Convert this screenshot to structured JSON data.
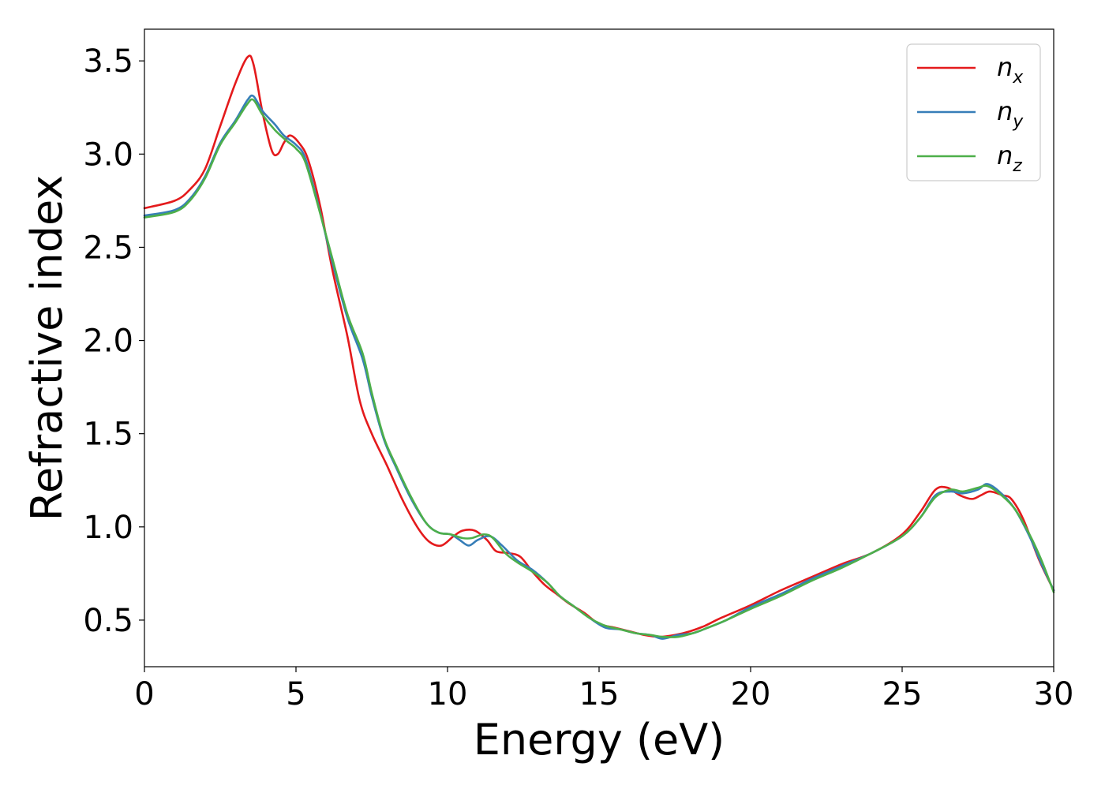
{
  "chart_data": {
    "type": "line",
    "xlabel": "Energy (eV)",
    "ylabel": "Refractive index",
    "xlim": [
      0,
      30
    ],
    "ylim": [
      0.25,
      3.67
    ],
    "xticks": [
      0,
      5,
      10,
      15,
      20,
      25,
      30
    ],
    "xtick_labels": [
      "0",
      "5",
      "10",
      "15",
      "20",
      "25",
      "30"
    ],
    "yticks": [
      0.5,
      1.0,
      1.5,
      2.0,
      2.5,
      3.0,
      3.5
    ],
    "ytick_labels": [
      "0.5",
      "1.0",
      "1.5",
      "2.0",
      "2.5",
      "3.0",
      "3.5"
    ],
    "grid": false,
    "legend_position": "top-right",
    "series": [
      {
        "name": "n_x",
        "label_base": "n",
        "label_sub": "x",
        "color": "#e41a1c",
        "points": [
          [
            0,
            2.71
          ],
          [
            1,
            2.75
          ],
          [
            1.5,
            2.81
          ],
          [
            2,
            2.92
          ],
          [
            2.5,
            3.15
          ],
          [
            3,
            3.38
          ],
          [
            3.4,
            3.52
          ],
          [
            3.6,
            3.48
          ],
          [
            3.9,
            3.22
          ],
          [
            4.2,
            3.02
          ],
          [
            4.4,
            3.0
          ],
          [
            4.6,
            3.06
          ],
          [
            4.8,
            3.1
          ],
          [
            5.1,
            3.06
          ],
          [
            5.4,
            2.97
          ],
          [
            5.8,
            2.72
          ],
          [
            6.2,
            2.38
          ],
          [
            6.7,
            2.02
          ],
          [
            7.1,
            1.68
          ],
          [
            7.5,
            1.5
          ],
          [
            8,
            1.33
          ],
          [
            8.5,
            1.15
          ],
          [
            9,
            1.0
          ],
          [
            9.4,
            0.92
          ],
          [
            9.8,
            0.9
          ],
          [
            10.2,
            0.95
          ],
          [
            10.5,
            0.98
          ],
          [
            10.9,
            0.98
          ],
          [
            11.3,
            0.93
          ],
          [
            11.6,
            0.87
          ],
          [
            12,
            0.86
          ],
          [
            12.4,
            0.84
          ],
          [
            12.8,
            0.76
          ],
          [
            13.2,
            0.69
          ],
          [
            13.6,
            0.64
          ],
          [
            14,
            0.59
          ],
          [
            14.5,
            0.54
          ],
          [
            15,
            0.48
          ],
          [
            15.5,
            0.46
          ],
          [
            16,
            0.44
          ],
          [
            16.5,
            0.42
          ],
          [
            17,
            0.41
          ],
          [
            17.5,
            0.42
          ],
          [
            18,
            0.44
          ],
          [
            18.5,
            0.47
          ],
          [
            19,
            0.51
          ],
          [
            20,
            0.58
          ],
          [
            21,
            0.66
          ],
          [
            22,
            0.73
          ],
          [
            23,
            0.8
          ],
          [
            24,
            0.86
          ],
          [
            25,
            0.96
          ],
          [
            25.6,
            1.08
          ],
          [
            26.1,
            1.2
          ],
          [
            26.5,
            1.21
          ],
          [
            26.9,
            1.17
          ],
          [
            27.3,
            1.15
          ],
          [
            27.6,
            1.17
          ],
          [
            27.9,
            1.19
          ],
          [
            28.3,
            1.17
          ],
          [
            28.6,
            1.15
          ],
          [
            29,
            1.04
          ],
          [
            29.5,
            0.83
          ],
          [
            30,
            0.66
          ]
        ]
      },
      {
        "name": "n_y",
        "label_base": "n",
        "label_sub": "y",
        "color": "#377eb8",
        "points": [
          [
            0,
            2.67
          ],
          [
            1,
            2.7
          ],
          [
            1.5,
            2.76
          ],
          [
            2,
            2.88
          ],
          [
            2.5,
            3.06
          ],
          [
            3,
            3.18
          ],
          [
            3.4,
            3.29
          ],
          [
            3.6,
            3.31
          ],
          [
            3.9,
            3.23
          ],
          [
            4.3,
            3.16
          ],
          [
            4.6,
            3.1
          ],
          [
            5,
            3.05
          ],
          [
            5.3,
            2.98
          ],
          [
            5.7,
            2.75
          ],
          [
            6.2,
            2.42
          ],
          [
            6.7,
            2.12
          ],
          [
            7.2,
            1.9
          ],
          [
            7.5,
            1.7
          ],
          [
            7.9,
            1.47
          ],
          [
            8.3,
            1.32
          ],
          [
            8.8,
            1.15
          ],
          [
            9.3,
            1.02
          ],
          [
            9.7,
            0.97
          ],
          [
            10.1,
            0.96
          ],
          [
            10.4,
            0.93
          ],
          [
            10.7,
            0.9
          ],
          [
            11,
            0.93
          ],
          [
            11.4,
            0.95
          ],
          [
            11.8,
            0.9
          ],
          [
            12.3,
            0.82
          ],
          [
            12.8,
            0.77
          ],
          [
            13.3,
            0.7
          ],
          [
            13.7,
            0.63
          ],
          [
            14.2,
            0.57
          ],
          [
            14.7,
            0.51
          ],
          [
            15.2,
            0.46
          ],
          [
            15.7,
            0.45
          ],
          [
            16.2,
            0.43
          ],
          [
            16.7,
            0.42
          ],
          [
            17.1,
            0.4
          ],
          [
            17.6,
            0.42
          ],
          [
            18.1,
            0.43
          ],
          [
            18.6,
            0.46
          ],
          [
            19.2,
            0.5
          ],
          [
            20,
            0.57
          ],
          [
            21,
            0.64
          ],
          [
            22,
            0.72
          ],
          [
            23,
            0.79
          ],
          [
            24,
            0.86
          ],
          [
            25,
            0.95
          ],
          [
            25.6,
            1.05
          ],
          [
            26.1,
            1.17
          ],
          [
            26.6,
            1.19
          ],
          [
            27,
            1.18
          ],
          [
            27.5,
            1.2
          ],
          [
            27.8,
            1.23
          ],
          [
            28.2,
            1.19
          ],
          [
            28.7,
            1.1
          ],
          [
            29.2,
            0.95
          ],
          [
            29.6,
            0.8
          ],
          [
            30,
            0.66
          ]
        ]
      },
      {
        "name": "n_z",
        "label_base": "n",
        "label_sub": "z",
        "color": "#4daf4a",
        "points": [
          [
            0,
            2.66
          ],
          [
            1,
            2.69
          ],
          [
            1.5,
            2.75
          ],
          [
            2,
            2.87
          ],
          [
            2.5,
            3.05
          ],
          [
            3,
            3.17
          ],
          [
            3.4,
            3.27
          ],
          [
            3.6,
            3.29
          ],
          [
            3.9,
            3.21
          ],
          [
            4.3,
            3.13
          ],
          [
            4.7,
            3.07
          ],
          [
            5,
            3.03
          ],
          [
            5.3,
            2.96
          ],
          [
            5.7,
            2.74
          ],
          [
            6.2,
            2.44
          ],
          [
            6.7,
            2.14
          ],
          [
            7.2,
            1.93
          ],
          [
            7.5,
            1.72
          ],
          [
            7.9,
            1.48
          ],
          [
            8.3,
            1.33
          ],
          [
            8.8,
            1.16
          ],
          [
            9.3,
            1.02
          ],
          [
            9.7,
            0.97
          ],
          [
            10.1,
            0.96
          ],
          [
            10.5,
            0.94
          ],
          [
            10.8,
            0.94
          ],
          [
            11.2,
            0.96
          ],
          [
            11.5,
            0.94
          ],
          [
            11.9,
            0.86
          ],
          [
            12.3,
            0.81
          ],
          [
            12.8,
            0.76
          ],
          [
            13.3,
            0.7
          ],
          [
            13.7,
            0.63
          ],
          [
            14.2,
            0.57
          ],
          [
            14.7,
            0.51
          ],
          [
            15.2,
            0.47
          ],
          [
            15.7,
            0.45
          ],
          [
            16.2,
            0.43
          ],
          [
            16.7,
            0.42
          ],
          [
            17.1,
            0.41
          ],
          [
            17.6,
            0.41
          ],
          [
            18.1,
            0.43
          ],
          [
            18.6,
            0.46
          ],
          [
            19.2,
            0.5
          ],
          [
            20,
            0.56
          ],
          [
            21,
            0.63
          ],
          [
            22,
            0.71
          ],
          [
            23,
            0.78
          ],
          [
            24,
            0.86
          ],
          [
            25,
            0.95
          ],
          [
            25.6,
            1.05
          ],
          [
            26.1,
            1.16
          ],
          [
            26.6,
            1.2
          ],
          [
            27,
            1.19
          ],
          [
            27.5,
            1.21
          ],
          [
            27.8,
            1.22
          ],
          [
            28.2,
            1.18
          ],
          [
            28.7,
            1.1
          ],
          [
            29.2,
            0.96
          ],
          [
            29.6,
            0.82
          ],
          [
            30,
            0.65
          ]
        ]
      }
    ]
  }
}
